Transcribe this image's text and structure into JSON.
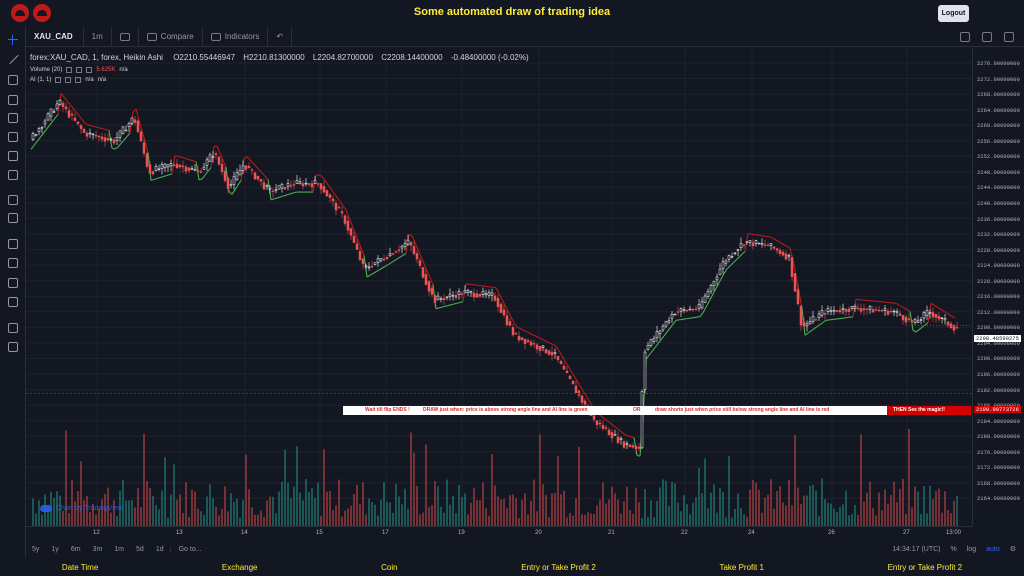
{
  "banner": {
    "title": "Some automated draw of trading idea",
    "logout_label": "Logout"
  },
  "toolbar": {
    "symbol": "XAU_CAD",
    "interval": "1m",
    "compare": "Compare",
    "indicators": "Indicators"
  },
  "legend": {
    "title": "forex:XAU_CAD, 1, forex, Heikin Ashi",
    "open": "O2210.55446947",
    "high": "H2210.81300000",
    "low": "L2204.82700000",
    "close": "C2208.14400000",
    "change": "-0.48400000 (-0.02%)"
  },
  "indicators": [
    {
      "name": "Volume (20)",
      "value": "5.625K",
      "extra": "n/a"
    },
    {
      "name": "AI (1, 1)",
      "value": "n/a",
      "extra": "n/a"
    }
  ],
  "yaxis": {
    "ticks": [
      "2276.00000000",
      "2272.00000000",
      "2268.00000000",
      "2264.00000000",
      "2260.00000000",
      "2256.00000000",
      "2252.00000000",
      "2248.00000000",
      "2244.00000000",
      "2240.00000000",
      "2236.00000000",
      "2232.00000000",
      "2228.00000000",
      "2224.00000000",
      "2220.00000000",
      "2216.00000000",
      "2212.00000000",
      "2208.00000000",
      "2204.00000000",
      "2200.00000000",
      "2196.00000000",
      "2192.00000000",
      "2188.00000000",
      "2184.00000000",
      "2180.00000000",
      "2176.00000000",
      "2172.00000000",
      "2168.00000000",
      "2164.00000000"
    ],
    "last_price": "2208.48599275",
    "line_price": "2190.99773726"
  },
  "xaxis": {
    "ticks": [
      "12",
      "13",
      "14",
      "15",
      "17",
      "19",
      "20",
      "21",
      "22",
      "24",
      "26",
      "27",
      "13:00"
    ]
  },
  "annotation": {
    "text1": "Wait till flip ENDS  !",
    "text2": "DRAW just when:  price is above strong angle line and AI line is green",
    "text3": "OR",
    "text4": "draw shorts just when price still below strong angle line and AI line is red",
    "text5": "THEN See the magic!!"
  },
  "watermark": "Chart by TradingView",
  "bottombar": {
    "ranges": [
      "5y",
      "1y",
      "6m",
      "3m",
      "1m",
      "5d",
      "1d"
    ],
    "goto": "Go to...",
    "time": "14:34:17 (UTC)",
    "percent": "%",
    "log": "log",
    "auto": "auto"
  },
  "footer": [
    "Date Time",
    "Exchange",
    "Coin",
    "Entry or Take Profit 2",
    "Take Profit 1",
    "Entry or Take Profit 2"
  ],
  "colors": {
    "background": "#131722",
    "up": "#ffffff",
    "down": "#ef5350",
    "ai_green": "#4caf50",
    "ai_red": "#b71c1c",
    "banner_text": "#ffeb3b"
  }
}
